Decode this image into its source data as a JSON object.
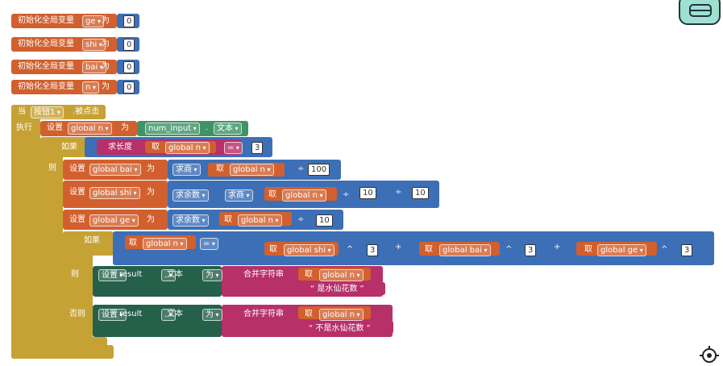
{
  "globals": [
    {
      "label": "初始化全局变量",
      "name": "ge",
      "to": "为",
      "value": 0
    },
    {
      "label": "初始化全局变量",
      "name": "shi",
      "to": "为",
      "value": 0
    },
    {
      "label": "初始化全局变量",
      "name": "bai",
      "to": "为",
      "value": 0
    },
    {
      "label": "初始化全局变量",
      "name": "n",
      "to": "为",
      "value": 0
    }
  ],
  "event": {
    "when": "当",
    "component": "按钮1",
    "clicked": ".被点击",
    "do": "执行"
  },
  "set_n": [
    "设置",
    "global n",
    "为",
    "num_input",
    ".",
    "文本"
  ],
  "if1": [
    "如果",
    "求长度",
    "取",
    "global n",
    "=",
    3
  ],
  "then1": "则",
  "set_bai": [
    "设置",
    "global bai",
    "为",
    "求商",
    "取",
    "global n",
    "÷",
    100
  ],
  "set_shi": [
    "设置",
    "global shi",
    "为",
    "求余数",
    "求商",
    "取",
    "global n",
    "÷",
    10,
    "÷",
    10
  ],
  "set_ge": [
    "设置",
    "global ge",
    "为",
    "求余数",
    "取",
    "global n",
    "÷",
    10
  ],
  "if2": [
    "如果",
    "取",
    "global n",
    "=",
    "取",
    "global shi",
    "^",
    3,
    "+",
    "取",
    "global bai",
    "^",
    3,
    "+",
    "取",
    "global ge",
    "^",
    3
  ],
  "then2": [
    "则",
    "设置",
    "result",
    ".",
    "文本",
    "为",
    "合并字符串",
    "取",
    "global n",
    "是水仙花数"
  ],
  "else2": [
    "否则",
    "设置",
    "result",
    ".",
    "文本",
    "为",
    "合并字符串",
    "取",
    "global n",
    "不是水仙花数"
  ]
}
